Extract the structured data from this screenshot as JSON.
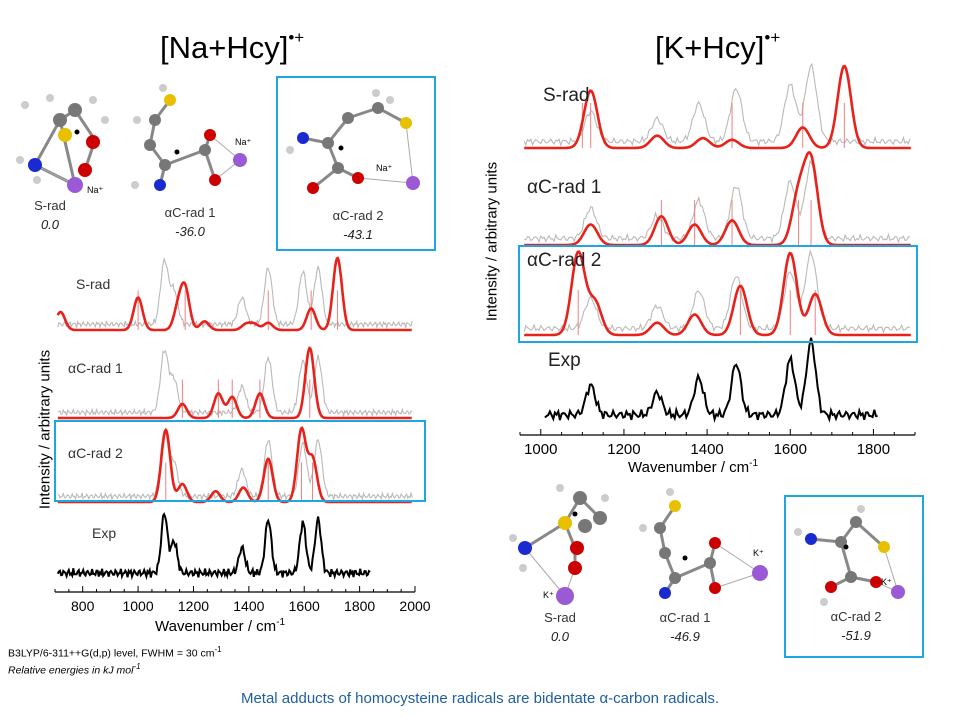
{
  "titles": {
    "na": {
      "text": "[Na+Hcy]",
      "sup": "•+"
    },
    "k": {
      "text": "[K+Hcy]",
      "sup": "•+"
    }
  },
  "na_molecules": [
    {
      "label": "S-rad",
      "energy": "0.0",
      "ion": "Na⁺"
    },
    {
      "label": "αC-rad 1",
      "energy": "-36.0",
      "ion": "Na⁺"
    },
    {
      "label": "αC-rad 2",
      "energy": "-43.1",
      "ion": "Na⁺"
    }
  ],
  "k_molecules": [
    {
      "label": "S-rad",
      "energy": "0.0",
      "ion": "K⁺"
    },
    {
      "label": "αC-rad 1",
      "energy": "-46.9",
      "ion": "K⁺"
    },
    {
      "label": "αC-rad 2",
      "energy": "-51.9",
      "ion": "K⁺"
    }
  ],
  "na_spectra_labels": [
    "S-rad",
    "αC-rad 1",
    "αC-rad 2",
    "Exp"
  ],
  "k_spectra_labels": [
    "S-rad",
    "αC-rad 1",
    "αC-rad 2",
    "Exp"
  ],
  "colors": {
    "computed": "#e8221a",
    "experimental_overlay": "#b9b9b9",
    "experimental": "#000000",
    "highlight": "#1ea6e0",
    "caption": "#1f5fa0"
  },
  "chart_data": [
    {
      "type": "line",
      "panel": "[Na+Hcy]•+",
      "xlabel": "Wavenumber / cm⁻¹",
      "ylabel": "Intensity / arbitrary units",
      "xlim": [
        700,
        2000
      ],
      "xticks": [
        800,
        1000,
        1200,
        1400,
        1600,
        1800,
        2000
      ],
      "series": [
        {
          "name": "S-rad",
          "peaks": [
            [
              720,
              0.25
            ],
            [
              1000,
              0.45
            ],
            [
              1145,
              0.3
            ],
            [
              1170,
              0.55
            ],
            [
              1240,
              0.12
            ],
            [
              1390,
              0.08
            ],
            [
              1420,
              0.08
            ],
            [
              1470,
              0.1
            ],
            [
              1625,
              0.3
            ],
            [
              1720,
              1.0
            ]
          ],
          "sticks": [
            1000,
            1170,
            1470,
            1625,
            1720
          ]
        },
        {
          "name": "αC-rad 1",
          "peaks": [
            [
              1160,
              0.2
            ],
            [
              1290,
              0.35
            ],
            [
              1340,
              0.3
            ],
            [
              1440,
              0.35
            ],
            [
              1620,
              1.0
            ]
          ],
          "sticks": [
            1160,
            1290,
            1340,
            1440,
            1620
          ]
        },
        {
          "name": "αC-rad 2",
          "peaks": [
            [
              1100,
              1.0
            ],
            [
              1160,
              0.25
            ],
            [
              1280,
              0.15
            ],
            [
              1380,
              0.2
            ],
            [
              1470,
              0.6
            ],
            [
              1590,
              1.0
            ],
            [
              1630,
              0.6
            ]
          ],
          "sticks": [
            1100,
            1470,
            1590,
            1630
          ]
        },
        {
          "name": "Exp",
          "peaks": [
            [
              1095,
              0.95
            ],
            [
              1130,
              0.5
            ],
            [
              1375,
              0.4
            ],
            [
              1470,
              0.85
            ],
            [
              1595,
              0.8
            ],
            [
              1650,
              0.85
            ]
          ]
        }
      ]
    },
    {
      "type": "line",
      "panel": "[K+Hcy]•+",
      "xlabel": "Wavenumber / cm⁻¹",
      "ylabel": "Intensity / arbitrary units",
      "xlim": [
        950,
        1900
      ],
      "xticks": [
        1000,
        1200,
        1400,
        1600,
        1800
      ],
      "series": [
        {
          "name": "S-rad",
          "peaks": [
            [
              1120,
              0.7
            ],
            [
              1280,
              0.15
            ],
            [
              1390,
              0.12
            ],
            [
              1460,
              0.1
            ],
            [
              1630,
              0.25
            ],
            [
              1730,
              1.0
            ]
          ],
          "sticks": [
            1100,
            1120,
            1460,
            1630,
            1730
          ]
        },
        {
          "name": "αC-rad 1",
          "peaks": [
            [
              1120,
              0.25
            ],
            [
              1290,
              0.35
            ],
            [
              1370,
              0.25
            ],
            [
              1460,
              0.3
            ],
            [
              1620,
              0.6
            ],
            [
              1650,
              1.0
            ]
          ],
          "sticks": [
            1290,
            1370,
            1460,
            1620,
            1650
          ]
        },
        {
          "name": "αC-rad 2",
          "peaks": [
            [
              1090,
              1.0
            ],
            [
              1130,
              0.4
            ],
            [
              1280,
              0.15
            ],
            [
              1370,
              0.25
            ],
            [
              1480,
              0.6
            ],
            [
              1600,
              1.0
            ],
            [
              1660,
              0.5
            ]
          ],
          "sticks": [
            1090,
            1480,
            1600,
            1660
          ]
        },
        {
          "name": "Exp",
          "peaks": [
            [
              1120,
              0.4
            ],
            [
              1280,
              0.3
            ],
            [
              1380,
              0.5
            ],
            [
              1470,
              0.7
            ],
            [
              1600,
              0.75
            ],
            [
              1650,
              1.0
            ]
          ]
        }
      ]
    }
  ],
  "axes": {
    "na": {
      "xlabel": "Wavenumber / cm",
      "xlabel_sup": "-1",
      "ylabel": "Intensity / arbitrary units",
      "ticks": [
        "800",
        "1000",
        "1200",
        "1400",
        "1600",
        "1800",
        "2000"
      ]
    },
    "k": {
      "xlabel": "Wavenumber / cm",
      "xlabel_sup": "-1",
      "ylabel": "Intensity / arbitrary units",
      "ticks": [
        "1000",
        "1200",
        "1400",
        "1600",
        "1800"
      ]
    }
  },
  "notes": {
    "method": "B3LYP/6-311++G(d,p) level, FWHM = 30 cm",
    "method_sup": "-1",
    "energies": "Relative energies in kJ mol",
    "energies_sup": "-1"
  },
  "caption": "Metal adducts of homocysteine radicals are bidentate α-carbon radicals."
}
